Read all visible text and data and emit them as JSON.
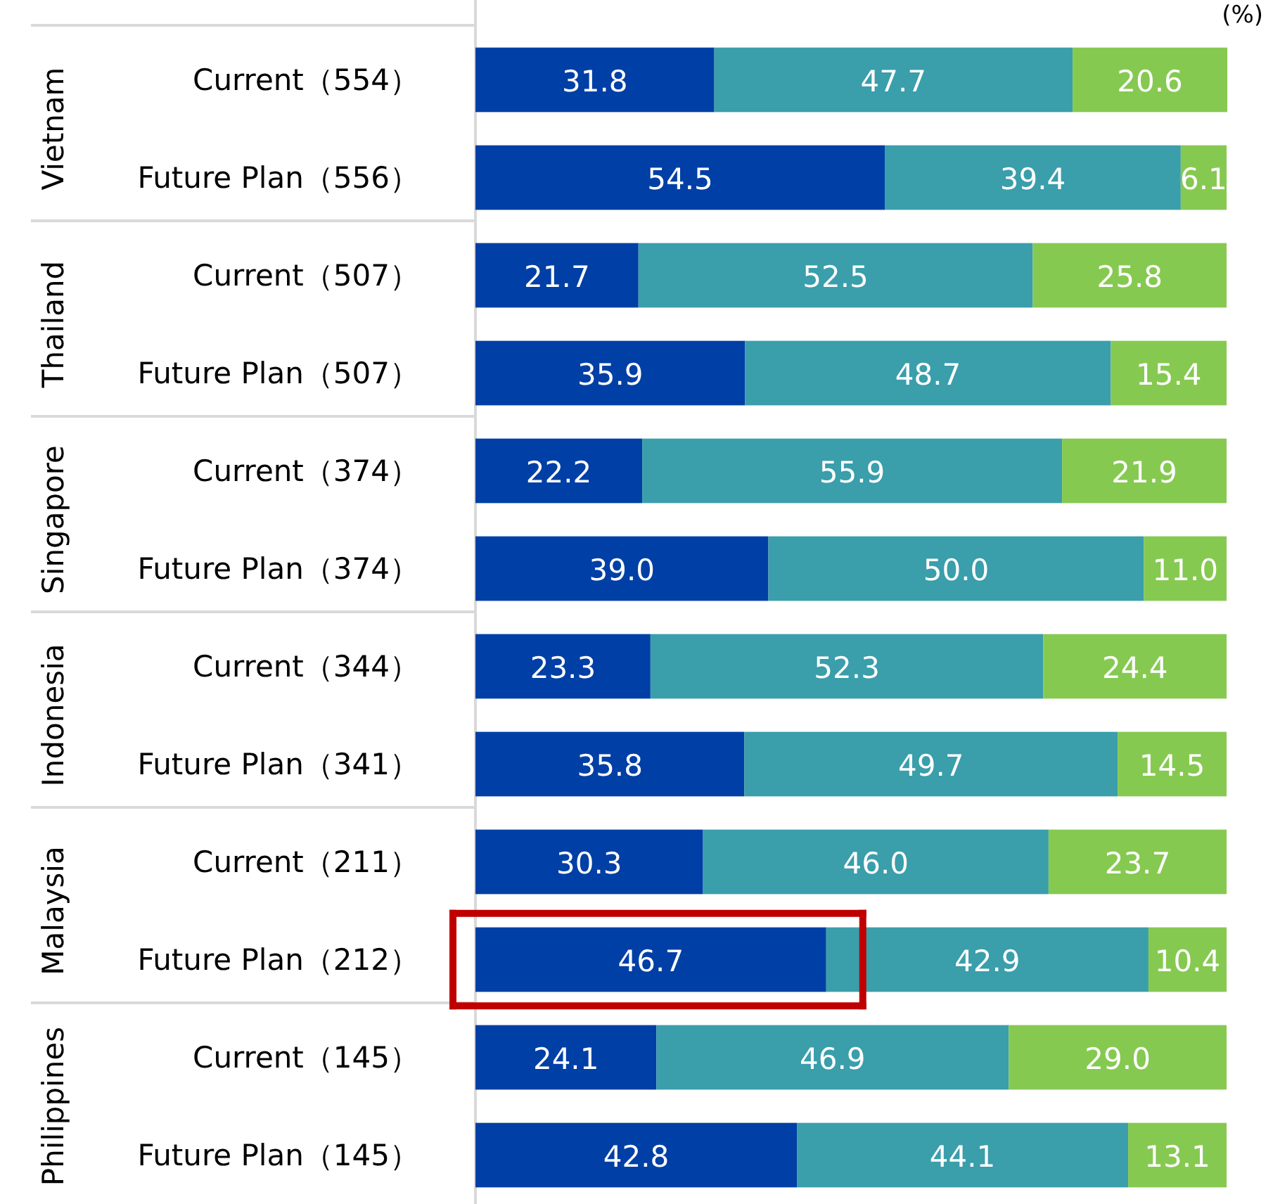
{
  "chart_data": {
    "type": "bar",
    "orientation": "horizontal",
    "stacked": true,
    "xlim": [
      0,
      100
    ],
    "categories": [
      "Current（554）",
      "Future Plan（556）",
      "Current（507）",
      "Future Plan（507）",
      "Current（374）",
      "Future Plan（374）",
      "Current（344）",
      "Future Plan（341）",
      "Current（211）",
      "Future Plan（212）",
      "Current（145）",
      "Future Plan（145）"
    ],
    "annotations": [
      "(%)",
      "Vietnam",
      "Thailand",
      "Singapore",
      "Indonesia",
      "Malaysia",
      "Philippines"
    ],
    "series": [
      {
        "color": "#003fa5",
        "values": [
          31.8,
          54.5,
          21.7,
          35.9,
          22.2,
          39.0,
          23.3,
          35.8,
          30.3,
          46.7,
          24.1,
          42.8
        ],
        "value_labels": [
          "31.8",
          "54.5",
          "21.7",
          "35.9",
          "22.2",
          "39.0",
          "23.3",
          "35.8",
          "30.3",
          "46.7",
          "24.1",
          "42.8"
        ]
      },
      {
        "color": "#3a9eab",
        "values": [
          47.7,
          39.4,
          52.5,
          48.7,
          55.9,
          50.0,
          52.3,
          49.7,
          46.0,
          42.9,
          46.9,
          44.1
        ],
        "value_labels": [
          "47.7",
          "39.4",
          "52.5",
          "48.7",
          "55.9",
          "50.0",
          "52.3",
          "49.7",
          "46.0",
          "42.9",
          "46.9",
          "44.1"
        ]
      },
      {
        "color": "#86c951",
        "values": [
          20.6,
          6.1,
          25.8,
          15.4,
          21.9,
          11.0,
          24.4,
          14.5,
          23.7,
          10.4,
          29.0,
          13.1
        ],
        "value_labels": [
          "20.6",
          "6.1",
          "25.8",
          "15.4",
          "21.9",
          "11.0",
          "24.4",
          "14.5",
          "23.7",
          "10.4",
          "29.0",
          "13.1"
        ]
      }
    ]
  }
}
